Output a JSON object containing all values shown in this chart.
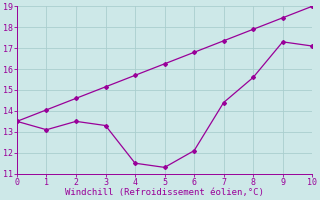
{
  "line1_x": [
    0,
    1,
    2,
    3,
    4,
    5,
    6,
    7,
    8,
    9,
    10
  ],
  "line1_y": [
    13.5,
    13.1,
    13.5,
    13.3,
    11.5,
    11.3,
    12.1,
    14.4,
    15.6,
    17.3,
    17.1
  ],
  "line2_x": [
    0,
    1,
    2,
    3,
    4,
    5,
    6,
    7,
    8,
    9,
    10
  ],
  "line2_y": [
    13.5,
    14.05,
    14.6,
    15.15,
    15.7,
    16.25,
    16.8,
    17.35,
    17.9,
    18.45,
    19.0
  ],
  "color": "#990099",
  "xlabel": "Windchill (Refroidissement éolien,°C)",
  "xlim": [
    0,
    10
  ],
  "ylim": [
    11,
    19
  ],
  "yticks": [
    11,
    12,
    13,
    14,
    15,
    16,
    17,
    18,
    19
  ],
  "xticks": [
    0,
    1,
    2,
    3,
    4,
    5,
    6,
    7,
    8,
    9,
    10
  ],
  "bg_color": "#cde8e8",
  "grid_color": "#aacece",
  "marker": "D",
  "markersize": 2,
  "linewidth": 0.9,
  "xlabel_fontsize": 6.5,
  "tick_fontsize": 6
}
